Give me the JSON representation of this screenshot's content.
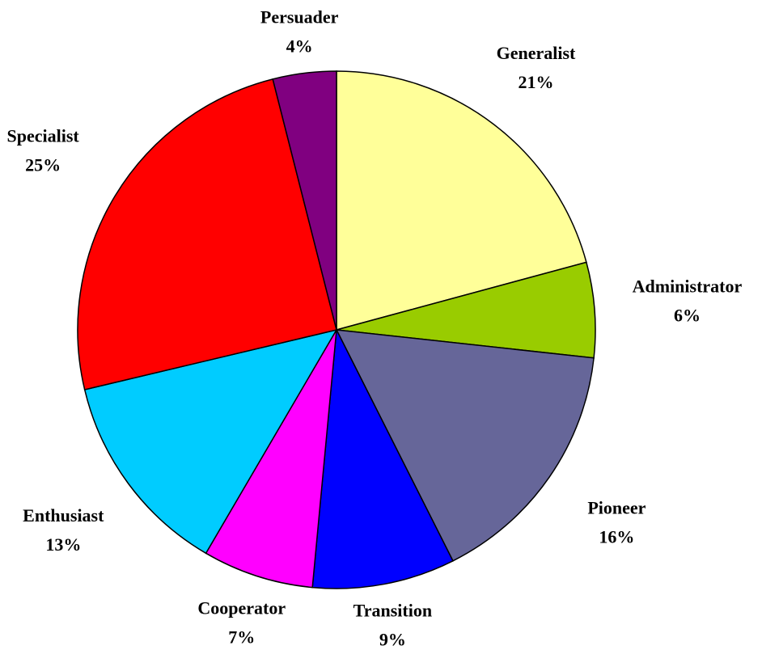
{
  "chart_data": {
    "type": "pie",
    "categories": [
      "Generalist",
      "Administrator",
      "Pioneer",
      "Transition",
      "Cooperator",
      "Enthusiast",
      "Specialist",
      "Persuader"
    ],
    "values": [
      21,
      6,
      16,
      9,
      7,
      13,
      25,
      4
    ],
    "value_labels": [
      "21%",
      "6%",
      "16%",
      "9%",
      "7%",
      "13%",
      "25%",
      "4%"
    ],
    "colors": [
      "#ffff99",
      "#99cc00",
      "#666699",
      "#0000ff",
      "#ff00ff",
      "#00ccff",
      "#ff0000",
      "#800080"
    ]
  }
}
